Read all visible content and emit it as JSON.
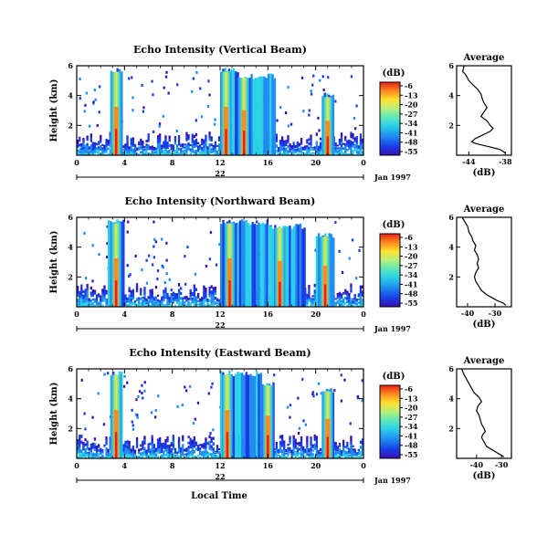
{
  "chart_data": [
    {
      "type": "heatmap",
      "title": "Echo Intensity (Vertical Beam)",
      "ylabel": "Height (km)",
      "xlabel": "",
      "x_ticks": [
        "0",
        "4",
        "8",
        "12",
        "16",
        "20",
        "0"
      ],
      "y_ticks": [
        "6",
        "4",
        "2"
      ],
      "xlim": [
        0,
        24
      ],
      "ylim": [
        0,
        6
      ],
      "date_label": "22",
      "date_suffix": "Jan 1997",
      "colorbar": {
        "unit": "(dB)",
        "ticks": [
          "-6",
          "-13",
          "-20",
          "-27",
          "-34",
          "-41",
          "-48",
          "-55"
        ]
      },
      "bands": [
        {
          "x0": 2.8,
          "x1": 3.8,
          "top": 5.9,
          "core": 3.3
        },
        {
          "x0": 12.0,
          "x1": 13.5,
          "top": 5.9,
          "core": 12.5
        },
        {
          "x0": 13.5,
          "x1": 16.5,
          "top": 5.5,
          "core": 14.0
        },
        {
          "x0": 20.5,
          "x1": 21.5,
          "top": 4.2,
          "core": 21.0
        }
      ]
    },
    {
      "type": "line",
      "title": "Average",
      "xlabel": "(dB)",
      "x_ticks": [
        "-44",
        "-38"
      ],
      "y_ticks": [
        "6",
        "4",
        "2"
      ],
      "xlim": [
        -46,
        -37
      ],
      "ylim": [
        0,
        6
      ],
      "x": [
        -44.8,
        -45,
        -44.5,
        -44,
        -43,
        -42.5,
        -42,
        -41.8,
        -41.5,
        -41,
        -41.5,
        -42,
        -41,
        -40.5,
        -40,
        -40.5,
        -41,
        -42,
        -43,
        -43.5,
        -43,
        -42,
        -41,
        -40,
        -39,
        -38.5,
        -38
      ],
      "y": [
        6,
        5.6,
        5.4,
        5,
        4.6,
        4.4,
        4.1,
        3.8,
        3.5,
        3.2,
        2.9,
        2.6,
        2.3,
        2.0,
        1.8,
        1.6,
        1.5,
        1.3,
        1.1,
        0.9,
        0.8,
        0.7,
        0.6,
        0.5,
        0.4,
        0.3,
        0.15
      ]
    },
    {
      "type": "heatmap",
      "title": "Echo Intensity (Northward Beam)",
      "ylabel": "Height (km)",
      "xlabel": "",
      "x_ticks": [
        "0",
        "4",
        "8",
        "12",
        "16",
        "20",
        "0"
      ],
      "y_ticks": [
        "6",
        "4",
        "2"
      ],
      "xlim": [
        0,
        24
      ],
      "ylim": [
        0,
        6
      ],
      "date_label": "22",
      "date_suffix": "Jan 1997",
      "colorbar": {
        "unit": "(dB)",
        "ticks": [
          "-6",
          "-13",
          "-20",
          "-27",
          "-34",
          "-41",
          "-48",
          "-55"
        ]
      },
      "bands": [
        {
          "x0": 2.6,
          "x1": 4.0,
          "top": 5.9,
          "core": 3.3
        },
        {
          "x0": 12.0,
          "x1": 16.0,
          "top": 5.9,
          "core": 12.8
        },
        {
          "x0": 16.0,
          "x1": 19.0,
          "top": 5.6,
          "core": 17.0
        },
        {
          "x0": 20.0,
          "x1": 21.5,
          "top": 5.0,
          "core": 20.8
        }
      ]
    },
    {
      "type": "line",
      "title": "Average",
      "xlabel": "(dB)",
      "x_ticks": [
        "-40",
        "-30"
      ],
      "y_ticks": [
        "6",
        "4",
        "2"
      ],
      "xlim": [
        -44,
        -24
      ],
      "ylim": [
        0,
        6
      ],
      "x": [
        -42,
        -41,
        -40,
        -39.5,
        -38.5,
        -38,
        -37,
        -37.5,
        -36.5,
        -36,
        -36.5,
        -36,
        -37,
        -37.5,
        -37,
        -36,
        -35,
        -33,
        -31,
        -29,
        -27,
        -26
      ],
      "y": [
        6,
        5.7,
        5.4,
        5.0,
        4.7,
        4.4,
        4.1,
        3.8,
        3.5,
        3.2,
        2.9,
        2.6,
        2.3,
        2.0,
        1.7,
        1.4,
        1.1,
        0.8,
        0.6,
        0.4,
        0.25,
        0.1
      ]
    },
    {
      "type": "heatmap",
      "title": "Echo Intensity (Eastward Beam)",
      "ylabel": "Height (km)",
      "xlabel": "Local Time",
      "x_ticks": [
        "0",
        "4",
        "8",
        "12",
        "16",
        "20",
        "0"
      ],
      "y_ticks": [
        "6",
        "4",
        "2"
      ],
      "xlim": [
        0,
        24
      ],
      "ylim": [
        0,
        6
      ],
      "date_label": "22",
      "date_suffix": "Jan 1997",
      "colorbar": {
        "unit": "(dB)",
        "ticks": [
          "-6",
          "-13",
          "-20",
          "-27",
          "-34",
          "-41",
          "-48",
          "-55"
        ]
      },
      "bands": [
        {
          "x0": 2.8,
          "x1": 3.8,
          "top": 5.9,
          "core": 3.3
        },
        {
          "x0": 12.0,
          "x1": 15.5,
          "top": 5.9,
          "core": 12.6
        },
        {
          "x0": 15.5,
          "x1": 16.5,
          "top": 5.2,
          "core": 16.0
        },
        {
          "x0": 20.5,
          "x1": 21.5,
          "top": 4.8,
          "core": 21.0
        }
      ]
    },
    {
      "type": "line",
      "title": "Average",
      "xlabel": "(dB)",
      "x_ticks": [
        "-40",
        "-30"
      ],
      "y_ticks": [
        "6",
        "4",
        "2"
      ],
      "xlim": [
        -48,
        -26
      ],
      "ylim": [
        0,
        6
      ],
      "x": [
        -46,
        -45,
        -44,
        -43,
        -42,
        -41,
        -39,
        -38,
        -39.5,
        -40,
        -39,
        -38.5,
        -38,
        -37,
        -36.5,
        -37.5,
        -38,
        -37,
        -36,
        -34,
        -32,
        -30,
        -29
      ],
      "y": [
        6,
        5.6,
        5.3,
        5.0,
        4.7,
        4.4,
        4.1,
        3.8,
        3.5,
        3.2,
        2.9,
        2.6,
        2.3,
        2.0,
        1.8,
        1.6,
        1.4,
        1.1,
        0.8,
        0.6,
        0.4,
        0.2,
        0.1
      ]
    }
  ],
  "colors": {
    "scale": [
      "#3b0fb0",
      "#1a3ce8",
      "#1e8cf0",
      "#2ad0e8",
      "#5ee8b8",
      "#b8f07a",
      "#ffe030",
      "#ff8a1e",
      "#e8201a"
    ]
  }
}
